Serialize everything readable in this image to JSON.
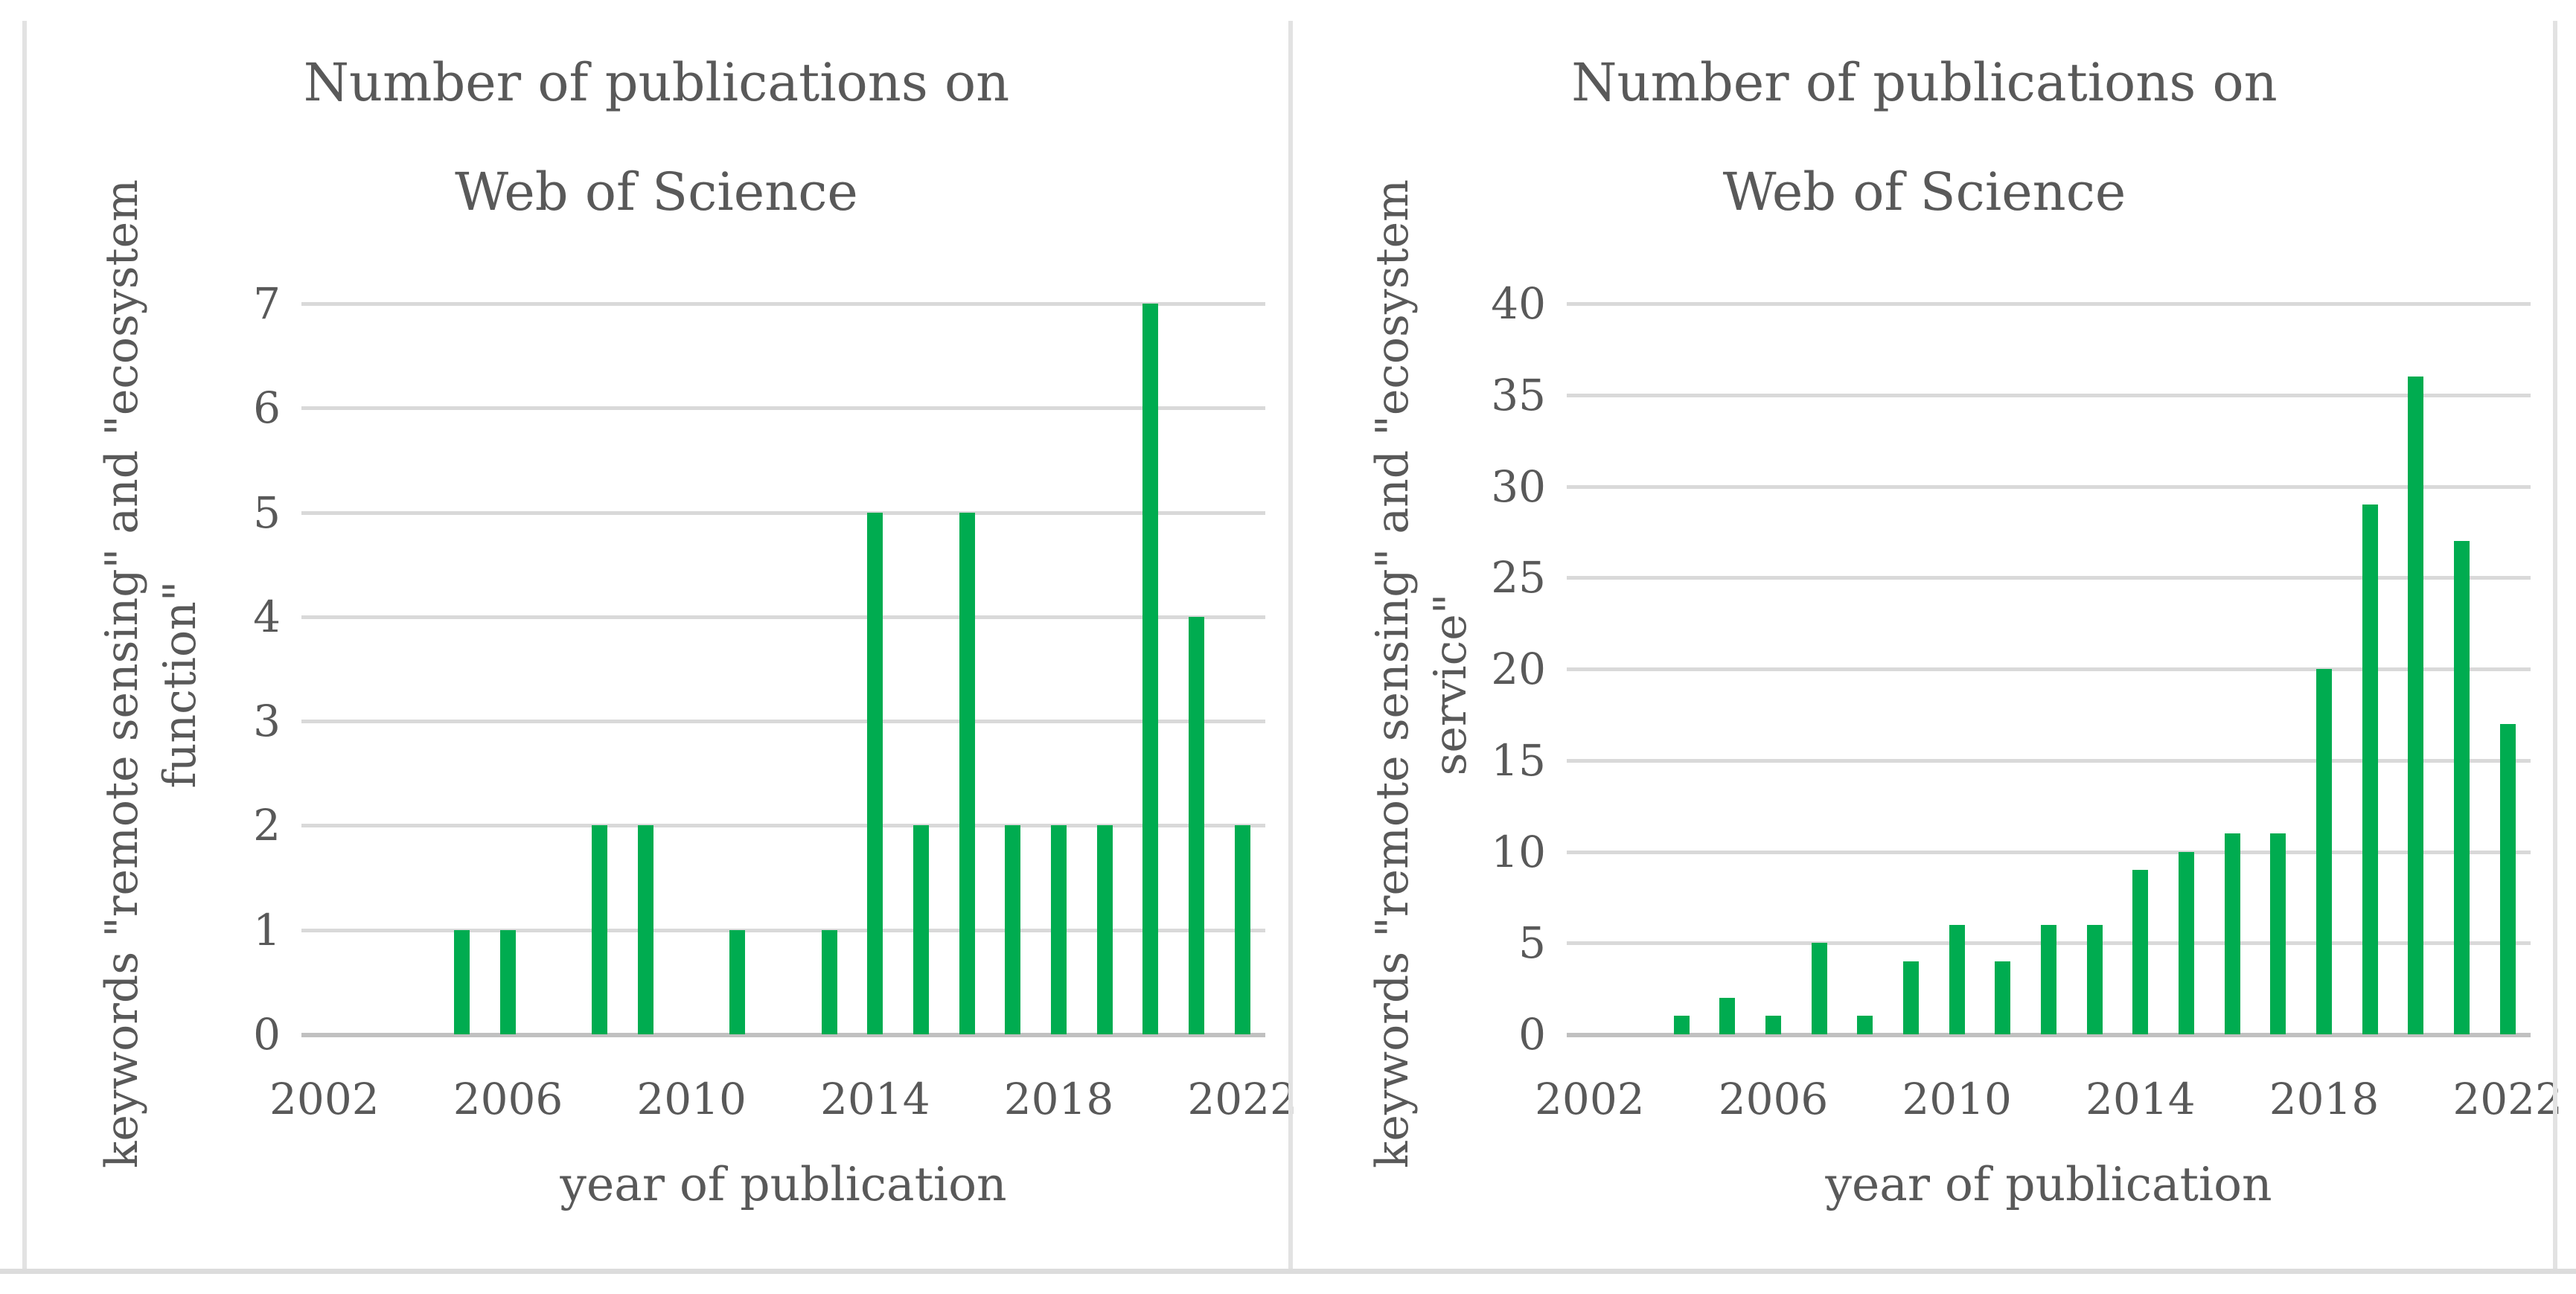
{
  "colors": {
    "bar": "#00AC50",
    "text": "#595959",
    "gridline": "#D9D9D9",
    "axis_line": "#C0C0C0",
    "panel_border": "#E2E2E2"
  },
  "chart_data": [
    {
      "type": "bar",
      "title": "Number of publications on Web of Science",
      "title_line1": "Number of publications on",
      "title_line2": "Web of Science",
      "ylabel": "keywords \"remote sensing\" and \"ecosystem function\"",
      "ylabel_line1": "keywords \"remote sensing\" and \"ecosystem",
      "ylabel_line2": "function\"",
      "xlabel": "year of publication",
      "categories": [
        2002,
        2003,
        2004,
        2005,
        2006,
        2007,
        2008,
        2009,
        2010,
        2011,
        2012,
        2013,
        2014,
        2015,
        2016,
        2017,
        2018,
        2019,
        2020,
        2021,
        2022
      ],
      "values": [
        0,
        0,
        0,
        1,
        1,
        0,
        2,
        2,
        0,
        1,
        0,
        1,
        5,
        2,
        5,
        2,
        2,
        2,
        7,
        4,
        2
      ],
      "ylim": [
        0,
        7
      ],
      "yticks": [
        0,
        1,
        2,
        3,
        4,
        5,
        6,
        7
      ],
      "xticks": [
        2002,
        2006,
        2010,
        2014,
        2018,
        2022
      ],
      "grid": "horizontal",
      "legend_position": "none"
    },
    {
      "type": "bar",
      "title": "Number of publications on Web of Science",
      "title_line1": "Number of publications on",
      "title_line2": "Web of Science",
      "ylabel": "keywords \"remote sensing\" and \"ecosystem service\"",
      "ylabel_line1": "keywords \"remote sensing\" and \"ecosystem",
      "ylabel_line2": "service\"",
      "xlabel": "year of publication",
      "categories": [
        2002,
        2003,
        2004,
        2005,
        2006,
        2007,
        2008,
        2009,
        2010,
        2011,
        2012,
        2013,
        2014,
        2015,
        2016,
        2017,
        2018,
        2019,
        2020,
        2021,
        2022
      ],
      "values": [
        0,
        0,
        1,
        2,
        1,
        5,
        1,
        4,
        6,
        4,
        6,
        6,
        9,
        10,
        11,
        11,
        20,
        29,
        36,
        27,
        17
      ],
      "ylim": [
        0,
        40
      ],
      "yticks": [
        0,
        5,
        10,
        15,
        20,
        25,
        30,
        35,
        40
      ],
      "xticks": [
        2002,
        2006,
        2010,
        2014,
        2018,
        2022
      ],
      "grid": "horizontal",
      "legend_position": "none"
    }
  ]
}
